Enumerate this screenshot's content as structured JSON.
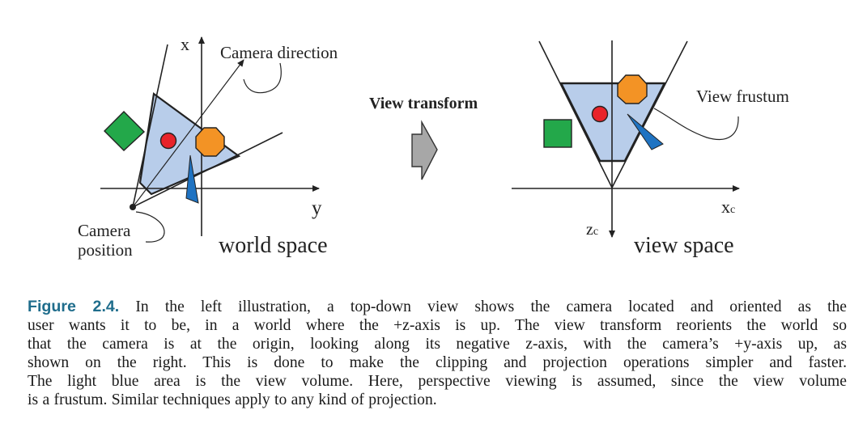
{
  "world": {
    "axis_x": "x",
    "axis_y": "y",
    "camera_direction": "Camera direction",
    "camera_position": [
      "Camera",
      "position"
    ],
    "title": "world space"
  },
  "transform": {
    "title": "View transform"
  },
  "view": {
    "axis_x": "x",
    "axis_x_sub": "c",
    "axis_z": "z",
    "axis_z_sub": "c",
    "frustum_label": "View frustum",
    "title": "view space"
  },
  "colors": {
    "frustum_fill": "#b8cdea",
    "red": "#e8232a",
    "orange": "#f39325",
    "green": "#23a84a",
    "blue": "#1f73c2",
    "arrow_gray": "#a7a7a7",
    "caption_label": "#1f6d8c"
  },
  "caption": {
    "label": "Figure 2.4.",
    "lines": [
      "In the left illustration, a top-down view shows the camera located and oriented as the",
      "user wants it to be, in a world where the +z-axis is up. The view transform reorients the world so",
      "that the camera is at the origin, looking along its negative z-axis, with the camera’s +y-axis up, as",
      "shown on the right. This is done to make the clipping and projection operations simpler and faster.",
      "The light blue area is the view volume. Here, perspective viewing is assumed, since the view volume",
      "is a frustum. Similar techniques apply to any kind of projection."
    ]
  }
}
